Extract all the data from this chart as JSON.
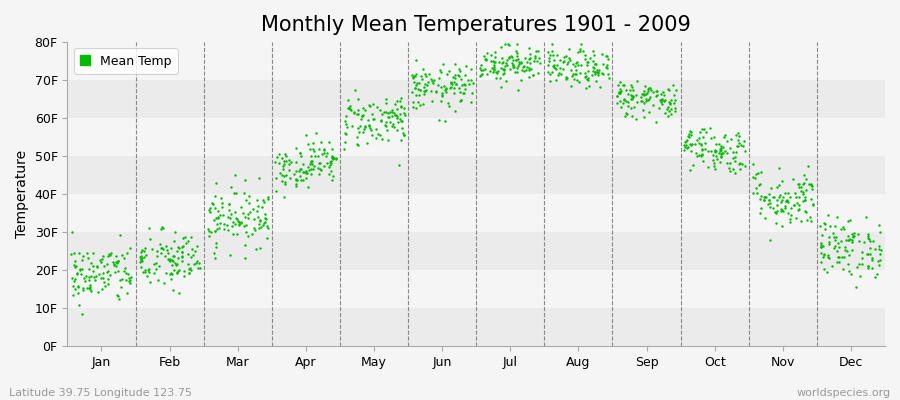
{
  "title": "Monthly Mean Temperatures 1901 - 2009",
  "ylabel": "Temperature",
  "ylim": [
    0,
    80
  ],
  "ytick_labels": [
    "0F",
    "10F",
    "20F",
    "30F",
    "40F",
    "50F",
    "60F",
    "70F",
    "80F"
  ],
  "ytick_values": [
    0,
    10,
    20,
    30,
    40,
    50,
    60,
    70,
    80
  ],
  "months": [
    "Jan",
    "Feb",
    "Mar",
    "Apr",
    "May",
    "Jun",
    "Jul",
    "Aug",
    "Sep",
    "Oct",
    "Nov",
    "Dec"
  ],
  "dot_color": "#00BB00",
  "bg_color": "#F0F0F0",
  "alt_band_color": "#E8E8E8",
  "legend_label": "Mean Temp",
  "bottom_left": "Latitude 39.75 Longitude 123.75",
  "bottom_right": "worldspecies.org",
  "mean_temps": [
    19.0,
    22.5,
    33.0,
    47.0,
    59.0,
    68.0,
    74.5,
    73.5,
    66.0,
    53.0,
    39.5,
    26.0
  ],
  "std_temps": [
    4.0,
    4.0,
    4.0,
    3.0,
    3.5,
    3.0,
    2.5,
    2.5,
    2.5,
    3.0,
    4.0,
    4.0
  ],
  "n_years": 109,
  "title_fontsize": 15,
  "axis_fontsize": 10,
  "tick_fontsize": 9,
  "dot_size": 3,
  "dot_alpha": 1.0
}
